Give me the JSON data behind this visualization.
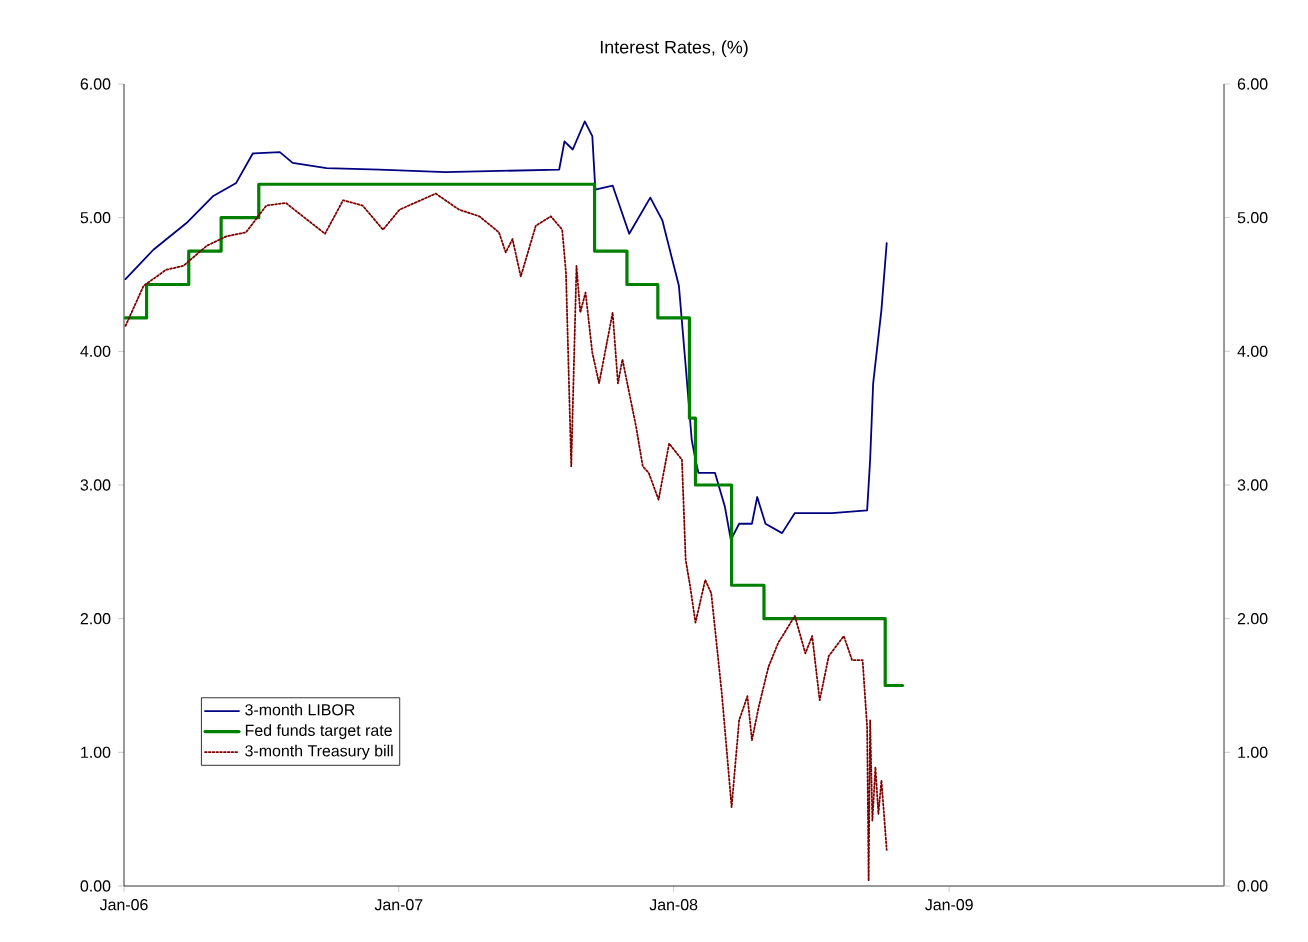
{
  "chart_data": {
    "type": "line",
    "title": "Interest Rates, (%)",
    "xlim": [
      "2006-01-01",
      "2010-01-01"
    ],
    "xticks": [
      {
        "value": "2006-01-01",
        "label": "Jan-06"
      },
      {
        "value": "2007-01-01",
        "label": "Jan-07"
      },
      {
        "value": "2008-01-01",
        "label": "Jan-08"
      },
      {
        "value": "2009-01-01",
        "label": "Jan-09"
      }
    ],
    "ylim": [
      0,
      6
    ],
    "yticks": [
      {
        "value": 0,
        "label": "0.00"
      },
      {
        "value": 1,
        "label": "1.00"
      },
      {
        "value": 2,
        "label": "2.00"
      },
      {
        "value": 3,
        "label": "3.00"
      },
      {
        "value": 4,
        "label": "4.00"
      },
      {
        "value": 5,
        "label": "5.00"
      },
      {
        "value": 6,
        "label": "6.00"
      }
    ],
    "y2lim": [
      0,
      6
    ],
    "y2ticks": [
      {
        "value": 0,
        "label": "0.00"
      },
      {
        "value": 1,
        "label": "1.00"
      },
      {
        "value": 2,
        "label": "2.00"
      },
      {
        "value": 3,
        "label": "3.00"
      },
      {
        "value": 4,
        "label": "4.00"
      },
      {
        "value": 5,
        "label": "5.00"
      },
      {
        "value": 6,
        "label": "6.00"
      }
    ],
    "legend": "bottom left",
    "series": [
      {
        "name": "3-month LIBOR",
        "color": "#000080",
        "line_style": "solid",
        "x": [
          "2006-01-03",
          "2006-02-09",
          "2006-03-25",
          "2006-04-29",
          "2006-05-30",
          "2006-06-21",
          "2006-07-27",
          "2006-08-13",
          "2006-09-27",
          "2006-12-06",
          "2007-03-04",
          "2007-08-02",
          "2007-08-09",
          "2007-08-20",
          "2007-09-05",
          "2007-09-15",
          "2007-09-19",
          "2007-10-12",
          "2007-11-03",
          "2007-12-01",
          "2007-12-17",
          "2007-12-30",
          "2008-01-08",
          "2008-01-17",
          "2008-01-25",
          "2008-01-30",
          "2008-02-03",
          "2008-02-25",
          "2008-03-09",
          "2008-03-17",
          "2008-03-28",
          "2008-04-14",
          "2008-04-21",
          "2008-05-02",
          "2008-05-24",
          "2008-06-10",
          "2008-07-29",
          "2008-09-14",
          "2008-09-18",
          "2008-09-22",
          "2008-10-03",
          "2008-10-10"
        ],
        "values": [
          4.54,
          4.76,
          4.96,
          5.16,
          5.26,
          5.48,
          5.49,
          5.41,
          5.37,
          5.36,
          5.34,
          5.36,
          5.57,
          5.51,
          5.72,
          5.61,
          5.21,
          5.24,
          4.88,
          5.15,
          4.98,
          4.69,
          4.49,
          3.89,
          3.34,
          3.19,
          3.09,
          3.09,
          2.84,
          2.59,
          2.71,
          2.71,
          2.91,
          2.71,
          2.64,
          2.79,
          2.79,
          2.81,
          3.19,
          3.76,
          4.31,
          4.81
        ]
      },
      {
        "name": "Fed funds target rate",
        "color": "#008000",
        "type": "step",
        "line_style": "solid",
        "x": [
          "2006-01-03",
          "2006-01-31",
          "2006-03-28",
          "2006-05-10",
          "2006-06-29",
          "2007-09-18",
          "2007-10-31",
          "2007-12-11",
          "2008-01-22",
          "2008-01-30",
          "2008-03-18",
          "2008-04-30",
          "2008-10-08",
          "2008-10-31"
        ],
        "values": [
          4.25,
          4.5,
          4.75,
          5.0,
          5.25,
          4.75,
          4.5,
          4.25,
          3.5,
          3.0,
          2.25,
          2.0,
          1.5,
          1.5
        ]
      },
      {
        "name": "3-month Treasury bill",
        "color": "#800000",
        "line_style": "dotted",
        "x": [
          "2006-01-03",
          "2006-01-27",
          "2006-02-26",
          "2006-03-21",
          "2006-04-21",
          "2006-05-17",
          "2006-06-12",
          "2006-07-09",
          "2006-08-04",
          "2006-08-31",
          "2006-09-25",
          "2006-10-19",
          "2006-11-14",
          "2006-12-11",
          "2007-01-02",
          "2007-02-19",
          "2007-03-22",
          "2007-04-18",
          "2007-05-14",
          "2007-05-23",
          "2007-06-01",
          "2007-06-12",
          "2007-07-02",
          "2007-07-22",
          "2007-08-06",
          "2007-08-11",
          "2007-08-18",
          "2007-08-25",
          "2007-08-30",
          "2007-09-06",
          "2007-09-15",
          "2007-09-24",
          "2007-10-12",
          "2007-10-19",
          "2007-10-25",
          "2007-11-12",
          "2007-11-21",
          "2007-11-29",
          "2007-12-12",
          "2007-12-26",
          "2008-01-12",
          "2008-01-17",
          "2008-01-23",
          "2008-01-30",
          "2008-02-12",
          "2008-02-20",
          "2008-03-05",
          "2008-03-18",
          "2008-03-28",
          "2008-04-08",
          "2008-04-14",
          "2008-04-23",
          "2008-05-06",
          "2008-05-19",
          "2008-06-10",
          "2008-06-24",
          "2008-07-03",
          "2008-07-13",
          "2008-07-25",
          "2008-08-14",
          "2008-08-25",
          "2008-09-08",
          "2008-09-14",
          "2008-09-16",
          "2008-09-18",
          "2008-09-21",
          "2008-09-25",
          "2008-09-29",
          "2008-10-03",
          "2008-10-10"
        ],
        "values": [
          4.19,
          4.49,
          4.61,
          4.64,
          4.79,
          4.86,
          4.89,
          5.09,
          5.11,
          4.99,
          4.88,
          5.13,
          5.09,
          4.91,
          5.06,
          5.18,
          5.06,
          5.01,
          4.89,
          4.74,
          4.84,
          4.56,
          4.94,
          5.01,
          4.91,
          4.59,
          3.14,
          4.64,
          4.29,
          4.44,
          3.99,
          3.76,
          4.29,
          3.76,
          3.94,
          3.44,
          3.14,
          3.09,
          2.89,
          3.31,
          3.19,
          2.44,
          2.24,
          1.97,
          2.29,
          2.19,
          1.44,
          0.59,
          1.24,
          1.42,
          1.09,
          1.34,
          1.64,
          1.82,
          2.02,
          1.74,
          1.87,
          1.39,
          1.72,
          1.87,
          1.69,
          1.69,
          1.19,
          0.04,
          1.24,
          0.49,
          0.89,
          0.54,
          0.79,
          0.27
        ]
      }
    ]
  }
}
